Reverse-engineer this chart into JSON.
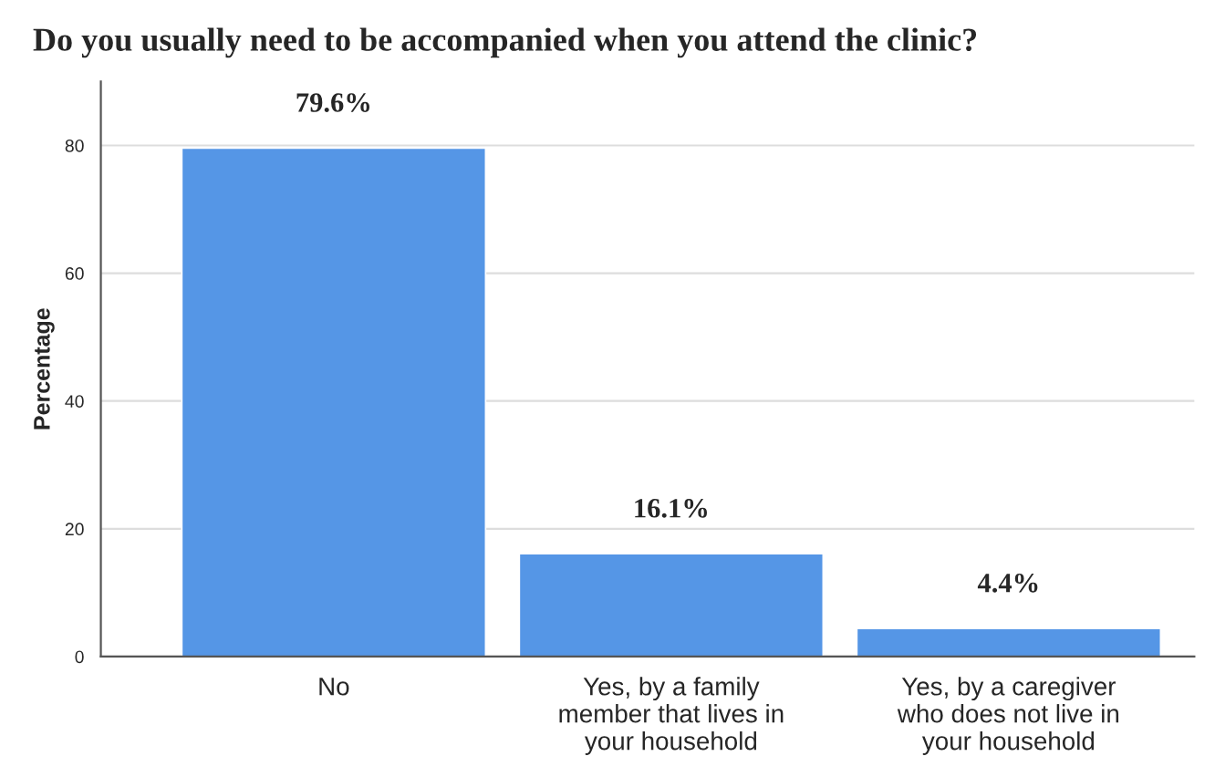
{
  "chart_data": {
    "type": "bar",
    "title": "Do you usually need to be accompanied when you attend the clinic?",
    "ylabel": "Percentage",
    "categories": [
      "No",
      "Yes, by a family\nmember that lives in\nyour household",
      "Yes, by a caregiver\nwho does not live in\nyour household"
    ],
    "values": [
      79.6,
      16.1,
      4.4
    ],
    "color": "#5596e6",
    "value_labels": [
      "79.6%",
      "16.1%",
      "4.4%"
    ],
    "ylim": [
      0,
      90
    ],
    "yticks": [
      0,
      20,
      40,
      60,
      80
    ],
    "grid": "y"
  }
}
